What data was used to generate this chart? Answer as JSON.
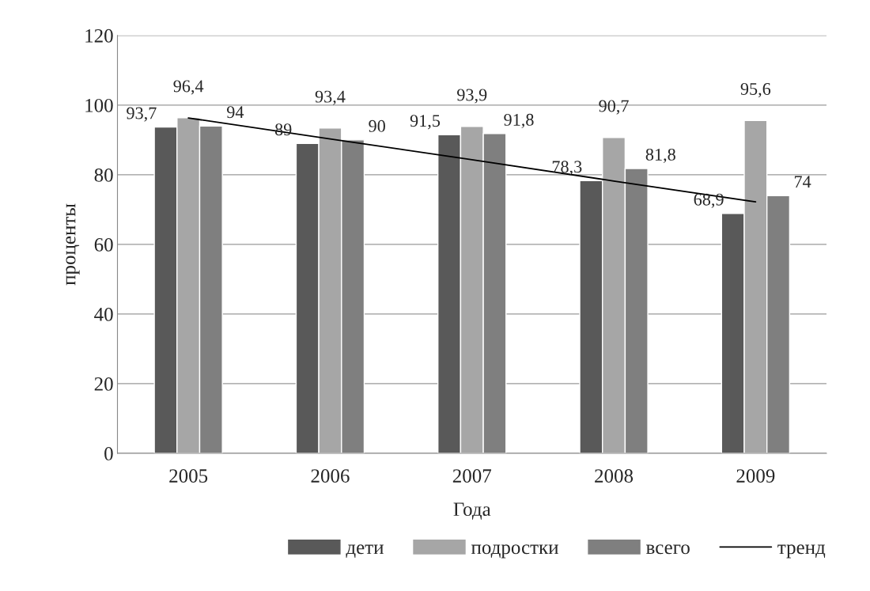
{
  "chart_data": {
    "type": "bar",
    "xlabel": "Года",
    "ylabel": "проценты",
    "categories": [
      "2005",
      "2006",
      "2007",
      "2008",
      "2009"
    ],
    "series": [
      {
        "name": "дети",
        "color": "#595959",
        "values": [
          93.7,
          89,
          91.5,
          78.3,
          68.9
        ],
        "value_labels": [
          "93,7",
          "89",
          "91,5",
          "78,3",
          "68,9"
        ]
      },
      {
        "name": "подростки",
        "color": "#a6a6a6",
        "values": [
          96.4,
          93.4,
          93.9,
          90.7,
          95.6
        ],
        "value_labels": [
          "96,4",
          "93,4",
          "93,9",
          "90,7",
          "95,6"
        ]
      },
      {
        "name": "всего",
        "color": "#7f7f7f",
        "values": [
          94,
          90,
          91.8,
          81.8,
          74
        ],
        "value_labels": [
          "94",
          "90",
          "91,8",
          "81,8",
          "74"
        ]
      },
      {
        "name": "тренд",
        "type": "line",
        "color": "#000000",
        "values": [
          96.3,
          90.3,
          84.3,
          78.2,
          72.2
        ]
      }
    ],
    "ylim": [
      0,
      120
    ],
    "yticks": [
      0,
      20,
      40,
      60,
      80,
      100,
      120
    ],
    "grid": "y",
    "legend": "bottom",
    "line_style": "solid",
    "marker": "none"
  }
}
